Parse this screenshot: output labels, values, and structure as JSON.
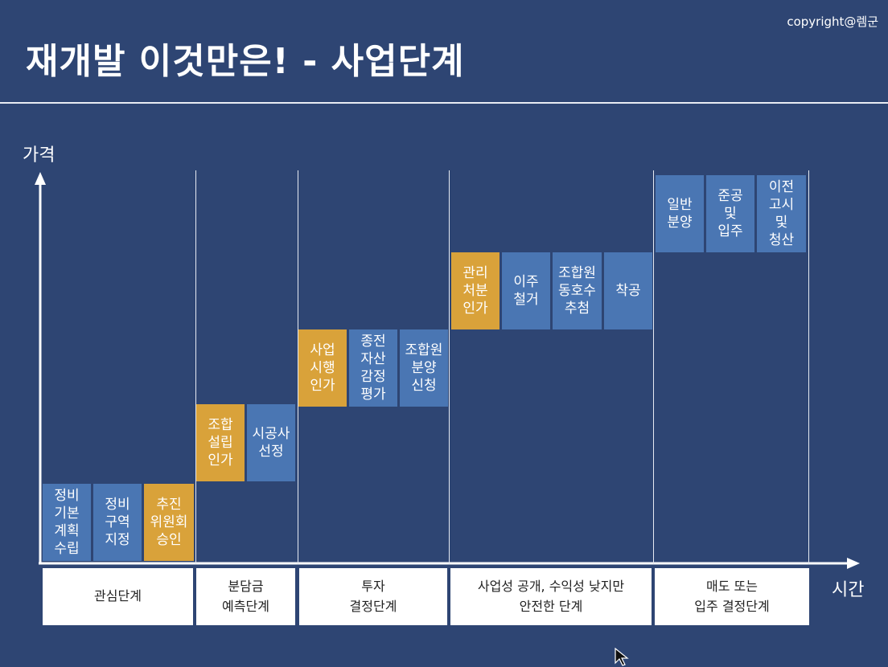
{
  "slide": {
    "copyright": "copyright@렘군",
    "title": "재개발 이것만은! - 사업단계"
  },
  "axes": {
    "y_label": "가격",
    "x_label": "시간"
  },
  "steps": [
    {
      "label": "정비\n기본\n계획\n수립",
      "color": "blue"
    },
    {
      "label": "정비\n구역\n지정",
      "color": "blue"
    },
    {
      "label": "추진\n위원회\n승인",
      "color": "gold"
    },
    {
      "label": "조합\n설립\n인가",
      "color": "gold"
    },
    {
      "label": "시공사\n선정",
      "color": "blue"
    },
    {
      "label": "사업\n시행\n인가",
      "color": "gold"
    },
    {
      "label": "종전\n자산\n감정\n평가",
      "color": "blue"
    },
    {
      "label": "조합원\n분양\n신청",
      "color": "blue"
    },
    {
      "label": "관리\n처분\n인가",
      "color": "gold"
    },
    {
      "label": "이주\n철거",
      "color": "blue"
    },
    {
      "label": "조합원\n동호수\n추첨",
      "color": "blue"
    },
    {
      "label": "착공",
      "color": "blue"
    },
    {
      "label": "일반\n분양",
      "color": "blue"
    },
    {
      "label": "준공\n및\n입주",
      "color": "blue"
    },
    {
      "label": "이전\n고시\n및\n청산",
      "color": "blue"
    }
  ],
  "stages": [
    {
      "label": "관심단계"
    },
    {
      "label": "분담금\n예측단계"
    },
    {
      "label": "투자\n결정단계"
    },
    {
      "label": "사업성 공개, 수익성 낮지만\n안전한 단계"
    },
    {
      "label": "매도 또는\n입주 결정단계"
    }
  ],
  "colors": {
    "background": "#2e4573",
    "blue_box": "#4a76b3",
    "gold_box": "#d9a23a",
    "stage_box": "#ffffff"
  }
}
